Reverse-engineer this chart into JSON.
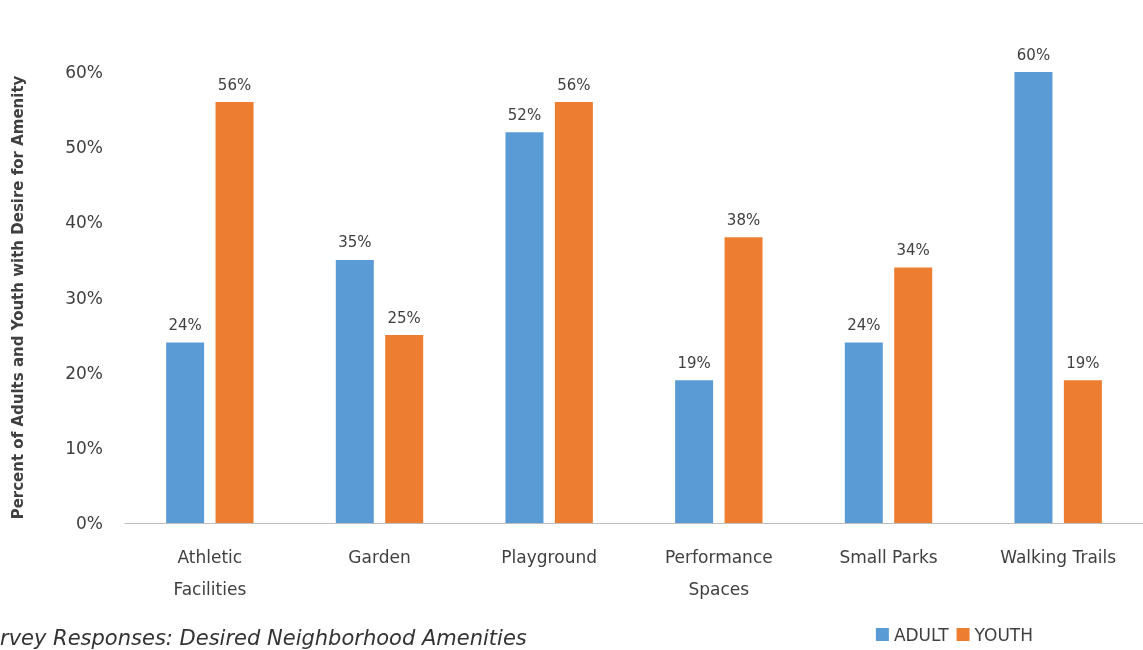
{
  "chart_data": {
    "type": "bar",
    "ylabel": "Percent of Adults and Youth with Desire for Amenity",
    "categories": [
      "Athletic\nFacilities",
      "Garden",
      "Playground",
      "Performance\nSpaces",
      "Small Parks",
      "Walking Trails"
    ],
    "series": [
      {
        "name": "ADULT",
        "color": "#5b9bd5",
        "values": [
          24,
          35,
          52,
          19,
          24,
          60
        ],
        "value_labels": [
          "24%",
          "35%",
          "52%",
          "19%",
          "24%",
          "60%"
        ]
      },
      {
        "name": "YOUTH",
        "color": "#ed7d31",
        "values": [
          56,
          25,
          56,
          38,
          34,
          19
        ],
        "value_labels": [
          "56%",
          "25%",
          "56%",
          "38%",
          "34%",
          "19%"
        ]
      }
    ],
    "ylim": [
      0,
      60
    ],
    "yticks": [
      {
        "value": 0,
        "label": "0%"
      },
      {
        "value": 10,
        "label": "10%"
      },
      {
        "value": 20,
        "label": "20%"
      },
      {
        "value": 30,
        "label": "30%"
      },
      {
        "value": 40,
        "label": "40%"
      },
      {
        "value": 50,
        "label": "50%"
      },
      {
        "value": 60,
        "label": "60%"
      }
    ],
    "grid": false,
    "legend": "bottom right",
    "annotations": [
      "rvey Responses: Desired Neighborhood Amenities"
    ]
  }
}
